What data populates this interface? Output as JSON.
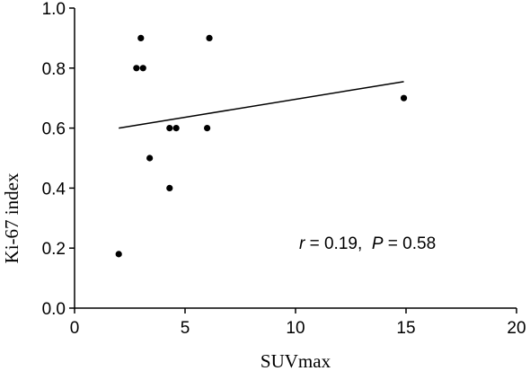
{
  "chart_data": {
    "type": "scatter",
    "title": "",
    "xlabel": "SUVmax",
    "ylabel": "Ki-67 index",
    "xlim": [
      0,
      20
    ],
    "ylim": [
      0.0,
      1.0
    ],
    "x_ticks": [
      0,
      5,
      10,
      15,
      20
    ],
    "x_tick_labels": [
      "0",
      "5",
      "10",
      "15",
      "20"
    ],
    "y_ticks": [
      0.0,
      0.2,
      0.4,
      0.6,
      0.8,
      1.0
    ],
    "y_tick_labels": [
      "0.0",
      "0.2",
      "0.4",
      "0.6",
      "0.8",
      "1.0"
    ],
    "grid": false,
    "legend": "none",
    "points": [
      {
        "x": 2.0,
        "y": 0.18
      },
      {
        "x": 2.8,
        "y": 0.8
      },
      {
        "x": 3.0,
        "y": 0.9
      },
      {
        "x": 3.1,
        "y": 0.8
      },
      {
        "x": 3.4,
        "y": 0.5
      },
      {
        "x": 4.3,
        "y": 0.4
      },
      {
        "x": 4.3,
        "y": 0.6
      },
      {
        "x": 4.6,
        "y": 0.6
      },
      {
        "x": 6.0,
        "y": 0.6
      },
      {
        "x": 6.1,
        "y": 0.9
      },
      {
        "x": 14.9,
        "y": 0.7
      }
    ],
    "fit_line": {
      "x": [
        2.0,
        14.9
      ],
      "y": [
        0.6,
        0.755
      ]
    },
    "annotation": {
      "r_symbol": "r",
      "r_text": " = 0.19,  ",
      "p_symbol": "P",
      "p_text": " = 0.58"
    },
    "colors": {
      "points": "#000000",
      "axes": "#000000",
      "fit_line": "#000000"
    }
  }
}
